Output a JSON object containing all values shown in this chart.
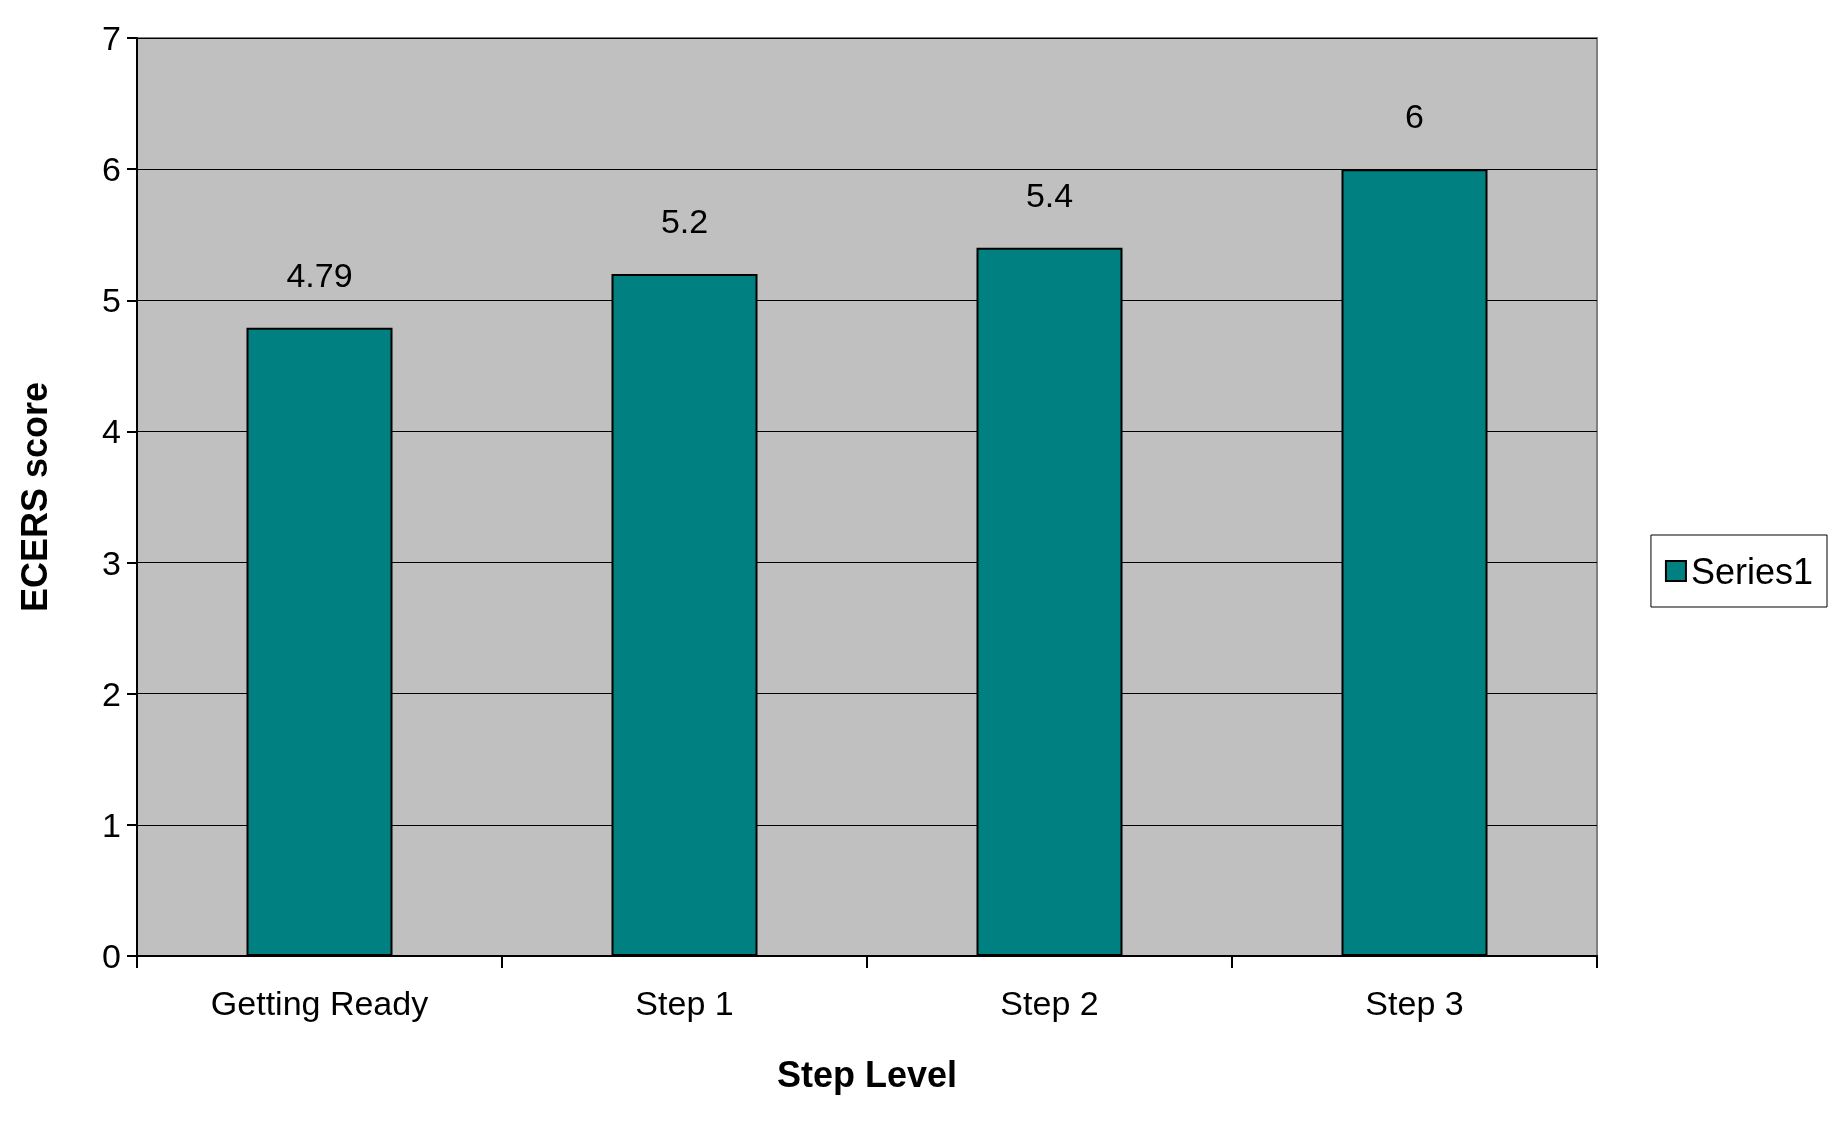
{
  "chart_data": {
    "type": "bar",
    "xlabel": "Step Level",
    "ylabel": "ECERS score",
    "categories": [
      "Getting Ready",
      "Step 1",
      "Step 2",
      "Step 3"
    ],
    "series": [
      {
        "name": "Series1",
        "color": "#008080",
        "values": [
          4.79,
          5.2,
          5.4,
          6
        ]
      }
    ],
    "ylim": [
      0,
      7
    ],
    "yticks": [
      0,
      1,
      2,
      3,
      4,
      5,
      6,
      7
    ],
    "grid": "y",
    "legend": "right",
    "data_labels": true
  }
}
